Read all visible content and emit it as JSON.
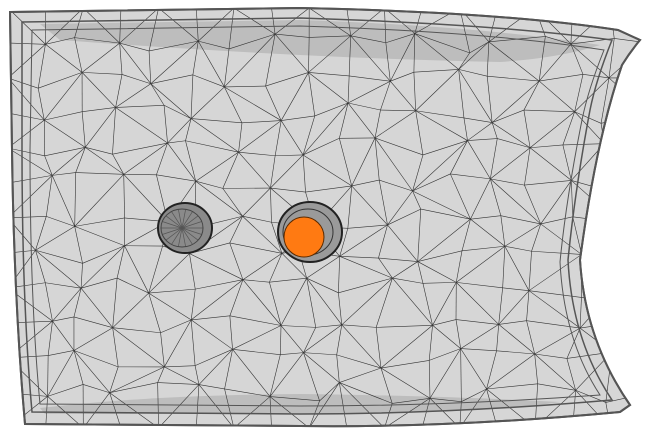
{
  "viewport": {
    "background_color": "#ffffff",
    "surface_fill_color": "#d6d6d6",
    "surface_shade_color": "#bdbdbd",
    "wire_color": "#333333",
    "rim_color": "#555555",
    "selection_color": "#ff7a12"
  },
  "scene": {
    "part_name": "meshed-tray-part",
    "holes": [
      {
        "name": "hole-left"
      },
      {
        "name": "hole-right",
        "selected": true
      }
    ]
  }
}
